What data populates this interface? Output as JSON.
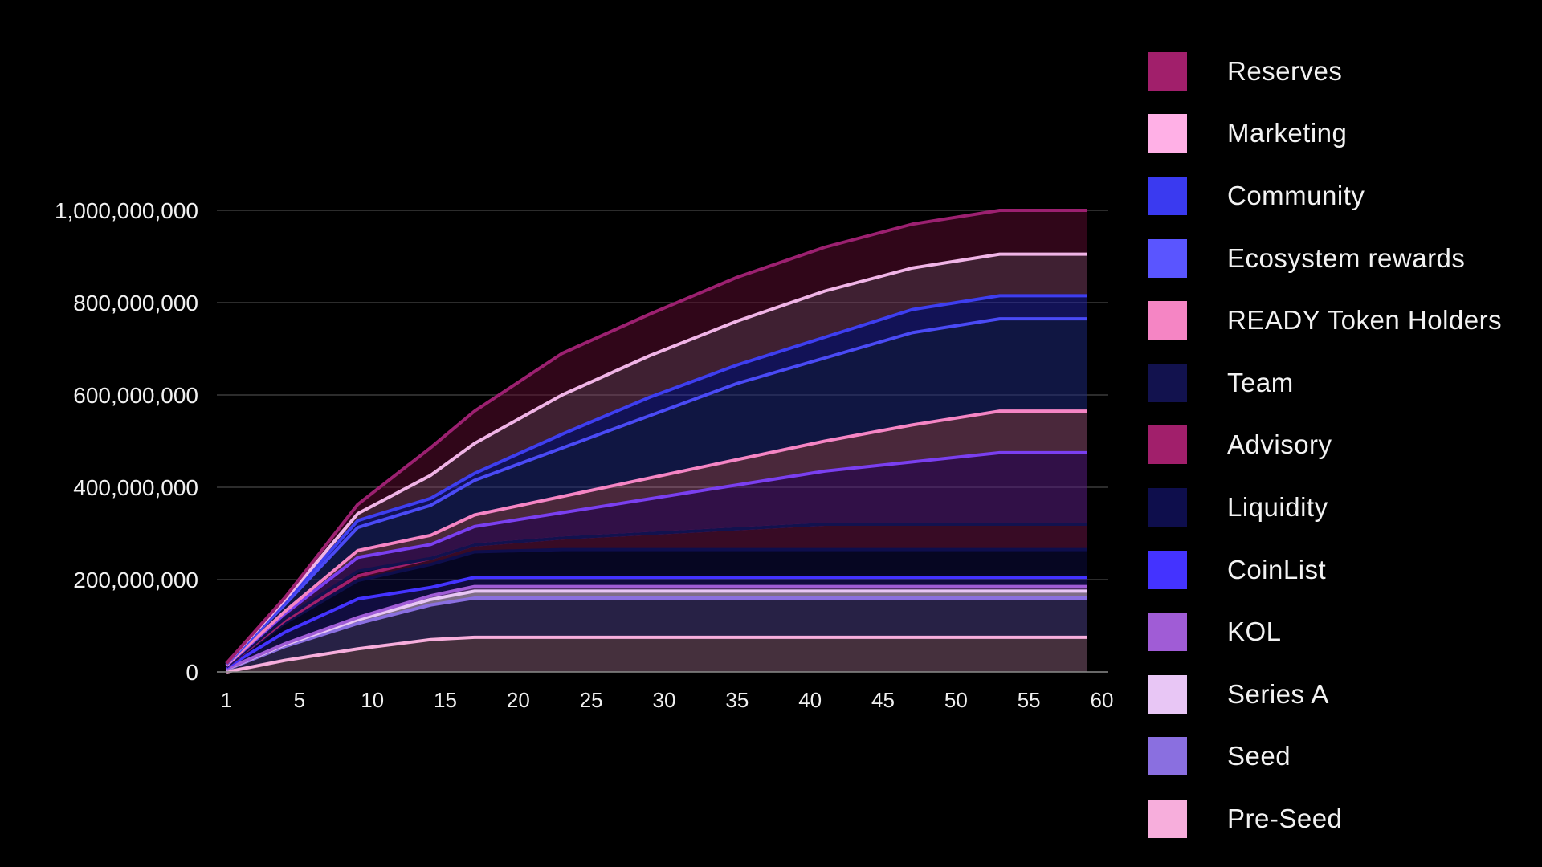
{
  "chart_data": {
    "type": "area",
    "stacked": true,
    "x": [
      1,
      5,
      10,
      15,
      18,
      24,
      30,
      36,
      42,
      48,
      54,
      60
    ],
    "xticks": [
      "1",
      "5",
      "10",
      "15",
      "20",
      "25",
      "30",
      "35",
      "40",
      "45",
      "50",
      "55",
      "60"
    ],
    "xtick_values": [
      1,
      6,
      11,
      16,
      21,
      26,
      31,
      36,
      41,
      46,
      51,
      56,
      61
    ],
    "xlim": [
      1,
      61
    ],
    "ylim": [
      0,
      1000000000
    ],
    "yticks": [
      "0",
      "200,000,000",
      "400,000,000",
      "600,000,000",
      "800,000,000",
      "1,000,000,000"
    ],
    "ytick_values": [
      0,
      200000000,
      400000000,
      600000000,
      800000000,
      1000000000
    ],
    "grid": true,
    "legend_position": "right",
    "series": [
      {
        "name": "Pre-Seed",
        "color": "#f7aedc",
        "line": "#f7aedc",
        "fill": "rgba(247,174,220,0.28)",
        "values": [
          0,
          25000000,
          50000000,
          70000000,
          75000000,
          75000000,
          75000000,
          75000000,
          75000000,
          75000000,
          75000000,
          75000000
        ]
      },
      {
        "name": "Seed",
        "color": "#8a6fe0",
        "line": "#8a6fe0",
        "fill": "rgba(130,110,230,0.30)",
        "values": [
          5000000,
          30000000,
          55000000,
          75000000,
          85000000,
          85000000,
          85000000,
          85000000,
          85000000,
          85000000,
          85000000,
          85000000
        ]
      },
      {
        "name": "Series A",
        "color": "#e8c6f5",
        "line": "#e8c6f5",
        "fill": "rgba(232,198,245,0.55)",
        "values": [
          1000000,
          4000000,
          8000000,
          12000000,
          15000000,
          15000000,
          15000000,
          15000000,
          15000000,
          15000000,
          15000000,
          15000000
        ]
      },
      {
        "name": "KOL",
        "color": "#a05cd6",
        "line": "#a05cd6",
        "fill": "rgba(160,92,214,0.50)",
        "values": [
          500000,
          2000000,
          5000000,
          8000000,
          10000000,
          10000000,
          10000000,
          10000000,
          10000000,
          10000000,
          10000000,
          10000000
        ]
      },
      {
        "name": "CoinList",
        "color": "#4433ff",
        "line": "#4433ff",
        "fill": "rgba(68,51,255,0.25)",
        "values": [
          3000000,
          25000000,
          40000000,
          18000000,
          20000000,
          20000000,
          20000000,
          20000000,
          20000000,
          20000000,
          20000000,
          20000000
        ]
      },
      {
        "name": "Liquidity",
        "color": "#0e0e4c",
        "line": "#0e0e4c",
        "fill": "rgba(14,14,76,0.45)",
        "values": [
          2000000,
          20000000,
          40000000,
          50000000,
          55000000,
          60000000,
          60000000,
          60000000,
          60000000,
          60000000,
          60000000,
          60000000
        ]
      },
      {
        "name": "Advisory",
        "color": "#a11f6b",
        "line": "#a11f6b",
        "fill": "rgba(161,31,107,0.35)",
        "values": [
          0,
          5000000,
          10000000,
          13000000,
          15000000,
          25000000,
          35000000,
          45000000,
          55000000,
          55000000,
          55000000,
          55000000
        ]
      },
      {
        "name": "Team",
        "color": "#12124e",
        "line": "#12124e",
        "fill": "rgba(18,18,78,0.40)",
        "values": [
          0,
          5000000,
          10000000,
          0,
          0,
          0,
          0,
          0,
          0,
          0,
          0,
          0
        ]
      },
      {
        "name": "READY Token Holders",
        "color": "#f585c4",
        "line": "#7a3ff0",
        "fill": "rgba(90,30,130,0.55)",
        "values": [
          2000000,
          10000000,
          30000000,
          30000000,
          40000000,
          55000000,
          75000000,
          95000000,
          115000000,
          135000000,
          155000000,
          155000000
        ]
      },
      {
        "name": "Ecosystem rewards",
        "color": "#5a55ff",
        "line": "#f585c4",
        "fill": "rgba(245,133,196,0.30)",
        "values": [
          1000000,
          5000000,
          15000000,
          20000000,
          25000000,
          35000000,
          45000000,
          55000000,
          65000000,
          80000000,
          90000000,
          90000000
        ]
      },
      {
        "name": "Community",
        "color": "#3a3af0",
        "line": "#4a4af5",
        "fill": "rgba(30,40,120,0.55)",
        "values": [
          2000000,
          15000000,
          50000000,
          65000000,
          75000000,
          105000000,
          135000000,
          165000000,
          180000000,
          200000000,
          200000000,
          200000000
        ]
      },
      {
        "name": "Marketing",
        "color": "#ffb0e6",
        "line": "#3e3ef0",
        "fill": "rgba(40,40,190,0.45)",
        "values": [
          1000000,
          5000000,
          15000000,
          15000000,
          15000000,
          30000000,
          40000000,
          40000000,
          45000000,
          50000000,
          50000000,
          50000000
        ]
      },
      {
        "name": "Reserves",
        "color": "#a11f6b",
        "line": "#f0b4e6",
        "fill": "rgba(140,70,110,0.45)",
        "values": [
          1000000,
          5000000,
          15000000,
          50000000,
          65000000,
          85000000,
          90000000,
          95000000,
          100000000,
          90000000,
          90000000,
          90000000
        ]
      },
      {
        "name": "",
        "color": "#a11f6b",
        "line": "#9c2070",
        "fill": "rgba(95,12,50,0.50)",
        "values": [
          0,
          5000000,
          20000000,
          60000000,
          70000000,
          90000000,
          90000000,
          95000000,
          95000000,
          95000000,
          95000000,
          95000000
        ]
      }
    ]
  },
  "legend": [
    {
      "label": "Reserves",
      "color": "#a11f6b"
    },
    {
      "label": "Marketing",
      "color": "#ffb0e6"
    },
    {
      "label": "Community",
      "color": "#3a3af0"
    },
    {
      "label": "Ecosystem rewards",
      "color": "#5a55ff"
    },
    {
      "label": "READY Token Holders",
      "color": "#f585c4"
    },
    {
      "label": "Team",
      "color": "#12124e"
    },
    {
      "label": "Advisory",
      "color": "#a11f6b"
    },
    {
      "label": "Liquidity",
      "color": "#0e0e4c"
    },
    {
      "label": "CoinList",
      "color": "#4433ff"
    },
    {
      "label": "KOL",
      "color": "#a05cd6"
    },
    {
      "label": "Series A",
      "color": "#e8c6f5"
    },
    {
      "label": "Seed",
      "color": "#8a6fe0"
    },
    {
      "label": "Pre-Seed",
      "color": "#f7aedc"
    }
  ]
}
